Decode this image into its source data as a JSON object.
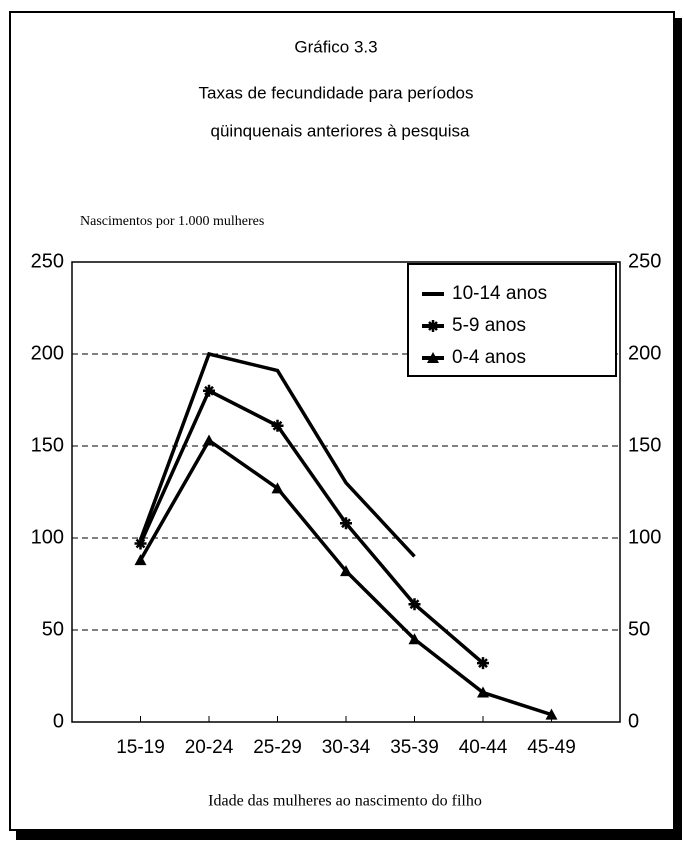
{
  "chart_data": {
    "type": "line",
    "title": "Gráfico 3.3",
    "subtitle": [
      "Taxas de fecundidade para períodos",
      "qüinquenais anteriores à pesquisa"
    ],
    "y_label": "Nascimentos por 1.000 mulheres",
    "x_label": "Idade das mulheres ao nascimento do filho",
    "categories": [
      "15-19",
      "20-24",
      "25-29",
      "30-34",
      "35-39",
      "40-44",
      "45-49"
    ],
    "series": [
      {
        "name": "10-14 anos",
        "color": "#000000",
        "marker": "none",
        "values": [
          99,
          200,
          191,
          130,
          90,
          null,
          null
        ]
      },
      {
        "name": "5-9 anos",
        "color": "#000000",
        "marker": "star",
        "values": [
          97,
          180,
          161,
          108,
          64,
          32,
          null
        ]
      },
      {
        "name": "0-4 anos",
        "color": "#000000",
        "marker": "triangle",
        "values": [
          88,
          153,
          127,
          82,
          45,
          16,
          4
        ]
      }
    ],
    "ylim": [
      0,
      250
    ],
    "yticks": [
      0,
      50,
      100,
      150,
      200,
      250
    ],
    "grid": true,
    "legend": "upper right"
  }
}
